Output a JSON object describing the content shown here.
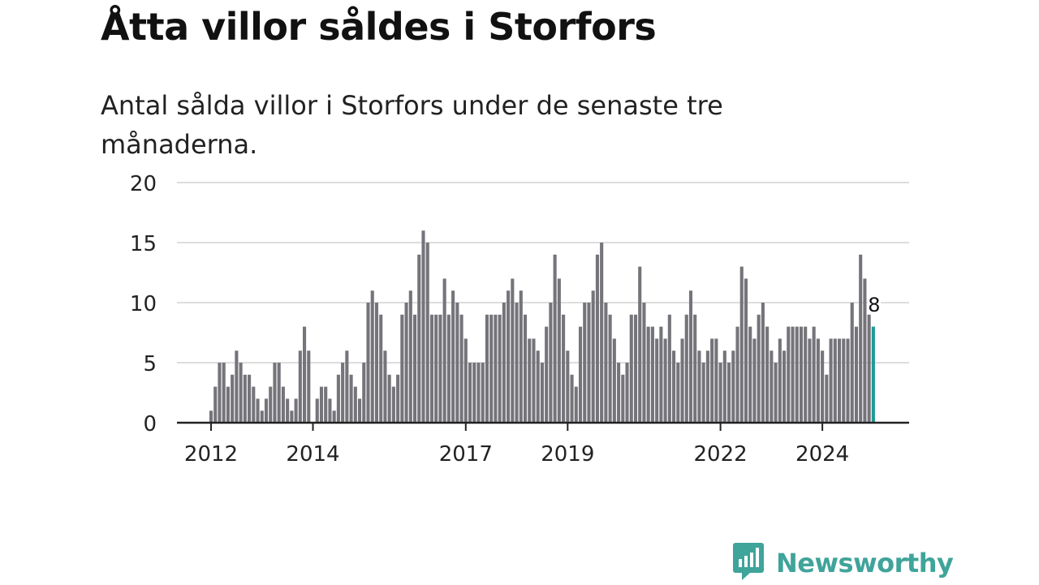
{
  "title": "Åtta villor såldes i Storfors",
  "subtitle": "Antal sålda villor i Storfors under de senaste tre månaderna.",
  "brand": {
    "name": "Newsworthy",
    "icon": "newsworthy-logo-icon"
  },
  "colors": {
    "bar": "#75747a",
    "highlight": "#1e9a95",
    "grid": "#dddddd",
    "axis": "#222222",
    "brand": "#3fa49a"
  },
  "chart_data": {
    "type": "bar",
    "title": "Åtta villor såldes i Storfors",
    "subtitle": "Antal sålda villor i Storfors under de senaste tre månaderna.",
    "xlabel": "",
    "ylabel": "",
    "ylim": [
      0,
      20
    ],
    "y_ticks": [
      0,
      5,
      10,
      15,
      20
    ],
    "x_ticks": [
      {
        "label": "2012",
        "month_index": 0
      },
      {
        "label": "2014",
        "month_index": 24
      },
      {
        "label": "2017",
        "month_index": 60
      },
      {
        "label": "2019",
        "month_index": 84
      },
      {
        "label": "2022",
        "month_index": 120
      },
      {
        "label": "2024",
        "month_index": 144
      }
    ],
    "start": "2012-01",
    "frequency": "monthly",
    "grid": true,
    "legend": "none",
    "highlight_label": "8",
    "values": [
      1,
      3,
      5,
      5,
      3,
      4,
      6,
      5,
      4,
      4,
      3,
      2,
      1,
      2,
      3,
      5,
      5,
      3,
      2,
      1,
      2,
      6,
      8,
      6,
      0,
      2,
      3,
      3,
      2,
      1,
      4,
      5,
      6,
      4,
      3,
      2,
      5,
      10,
      11,
      10,
      9,
      6,
      4,
      3,
      4,
      9,
      10,
      11,
      9,
      14,
      16,
      15,
      9,
      9,
      9,
      12,
      9,
      11,
      10,
      9,
      7,
      5,
      5,
      5,
      5,
      9,
      9,
      9,
      9,
      10,
      11,
      12,
      10,
      11,
      9,
      7,
      7,
      6,
      5,
      8,
      10,
      14,
      12,
      9,
      6,
      4,
      3,
      8,
      10,
      10,
      11,
      14,
      15,
      10,
      9,
      7,
      5,
      4,
      5,
      9,
      9,
      13,
      10,
      8,
      8,
      7,
      8,
      7,
      9,
      6,
      5,
      7,
      9,
      11,
      9,
      6,
      5,
      6,
      7,
      7,
      5,
      6,
      5,
      6,
      8,
      13,
      12,
      8,
      7,
      9,
      10,
      8,
      6,
      5,
      7,
      6,
      8,
      8,
      8,
      8,
      8,
      7,
      8,
      7,
      6,
      4,
      7,
      7,
      7,
      7,
      7,
      10,
      8,
      14,
      12,
      9,
      8
    ]
  }
}
